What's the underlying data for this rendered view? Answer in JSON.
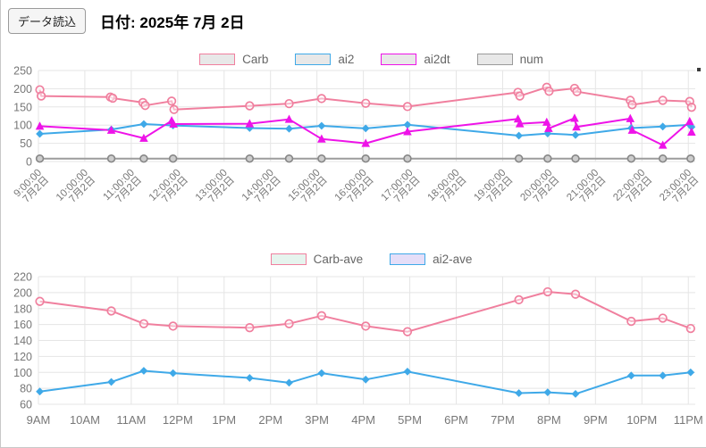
{
  "header": {
    "load_button_label": "データ読込",
    "date_title": "日付: 2025年 7月 2日"
  },
  "chart_data": [
    {
      "id": "detail",
      "type": "line",
      "title": "",
      "legend_position": "top",
      "grid": true,
      "y_axis": {
        "min": 0,
        "max": 250,
        "ticks": [
          0,
          50,
          100,
          150,
          200,
          250
        ]
      },
      "x_axis": {
        "kind": "time-of-day",
        "rotated": true,
        "tick_hours": [
          9,
          10,
          11,
          12,
          13,
          14,
          15,
          16,
          17,
          18,
          19,
          20,
          21,
          22,
          23
        ],
        "tick_labels": [
          {
            "time": "9:00:00",
            "date": "7月2日"
          },
          {
            "time": "10:00:00",
            "date": "7月2日"
          },
          {
            "time": "11:00:00",
            "date": "7月2日"
          },
          {
            "time": "12:00:00",
            "date": "7月2日"
          },
          {
            "time": "13:00:00",
            "date": "7月2日"
          },
          {
            "time": "14:00:00",
            "date": "7月2日"
          },
          {
            "time": "15:00:00",
            "date": "7月2日"
          },
          {
            "time": "16:00:00",
            "date": "7月2日"
          },
          {
            "time": "17:00:00",
            "date": "7月2日"
          },
          {
            "time": "18:00:00",
            "date": "7月2日"
          },
          {
            "time": "19:00:00",
            "date": "7月2日"
          },
          {
            "time": "20:00:00",
            "date": "7月2日"
          },
          {
            "time": "21:00:00",
            "date": "7月2日"
          },
          {
            "time": "22:00:00",
            "date": "7月2日"
          },
          {
            "time": "23:00:00",
            "date": "7月2日"
          }
        ]
      },
      "series": [
        {
          "name": "Carb",
          "line_color": "#f07f9e",
          "marker": "open-circle",
          "points": [
            [
              9.03,
              197
            ],
            [
              9.06,
              180
            ],
            [
              10.55,
              177
            ],
            [
              10.6,
              174
            ],
            [
              11.25,
              162
            ],
            [
              11.3,
              154
            ],
            [
              11.87,
              166
            ],
            [
              11.92,
              143
            ],
            [
              13.55,
              153
            ],
            [
              14.4,
              159
            ],
            [
              15.1,
              173
            ],
            [
              16.05,
              160
            ],
            [
              16.95,
              151
            ],
            [
              19.33,
              190
            ],
            [
              19.37,
              180
            ],
            [
              19.95,
              204
            ],
            [
              20.0,
              193
            ],
            [
              20.55,
              201
            ],
            [
              20.6,
              192
            ],
            [
              21.75,
              168
            ],
            [
              21.79,
              156
            ],
            [
              22.45,
              168
            ],
            [
              23.03,
              165
            ],
            [
              23.07,
              149
            ]
          ]
        },
        {
          "name": "ai2",
          "line_color": "#3fa9e8",
          "marker": "diamond",
          "points": [
            [
              9.03,
              76
            ],
            [
              10.57,
              88
            ],
            [
              11.27,
              103
            ],
            [
              11.9,
              99
            ],
            [
              13.55,
              92
            ],
            [
              14.4,
              90
            ],
            [
              15.1,
              98
            ],
            [
              16.05,
              91
            ],
            [
              16.95,
              101
            ],
            [
              19.35,
              71
            ],
            [
              19.97,
              77
            ],
            [
              20.57,
              73
            ],
            [
              21.77,
              92
            ],
            [
              22.45,
              96
            ],
            [
              23.03,
              101
            ],
            [
              23.07,
              95
            ]
          ]
        },
        {
          "name": "ai2dt",
          "line_color": "#ee13e8",
          "marker": "triangle",
          "points": [
            [
              9.03,
              97
            ],
            [
              10.57,
              86
            ],
            [
              11.27,
              64
            ],
            [
              11.87,
              112
            ],
            [
              11.91,
              103
            ],
            [
              13.55,
              104
            ],
            [
              14.4,
              116
            ],
            [
              15.1,
              62
            ],
            [
              16.05,
              50
            ],
            [
              16.95,
              82
            ],
            [
              19.33,
              117
            ],
            [
              19.37,
              104
            ],
            [
              19.95,
              108
            ],
            [
              19.99,
              91
            ],
            [
              20.55,
              119
            ],
            [
              20.59,
              95
            ],
            [
              21.75,
              118
            ],
            [
              21.79,
              86
            ],
            [
              22.45,
              45
            ],
            [
              23.03,
              110
            ],
            [
              23.07,
              81
            ]
          ]
        },
        {
          "name": "num",
          "line_color": "#9c9c9c",
          "marker": "ring-circle",
          "points": [
            [
              9.03,
              8
            ],
            [
              10.57,
              8
            ],
            [
              11.27,
              8
            ],
            [
              11.9,
              8
            ],
            [
              13.55,
              8
            ],
            [
              14.4,
              8
            ],
            [
              15.1,
              8
            ],
            [
              16.05,
              8
            ],
            [
              16.95,
              8
            ],
            [
              19.35,
              8
            ],
            [
              19.97,
              8
            ],
            [
              20.57,
              8
            ],
            [
              21.77,
              8
            ],
            [
              22.45,
              8
            ],
            [
              23.05,
              8
            ]
          ]
        }
      ],
      "legend": [
        {
          "label": "Carb",
          "box_border": "#f07f9e",
          "box_fill": "#e8e8e8"
        },
        {
          "label": "ai2",
          "box_border": "#3fa9e8",
          "box_fill": "#e8e8e8"
        },
        {
          "label": "ai2dt",
          "box_border": "#ee13e8",
          "box_fill": "#e8e8e8"
        },
        {
          "label": "num",
          "box_border": "#9a9a9a",
          "box_fill": "#e8e8e8"
        }
      ]
    },
    {
      "id": "hourly-average",
      "type": "line",
      "title": "",
      "legend_position": "top",
      "grid": true,
      "y_axis": {
        "min": 60,
        "max": 220,
        "ticks": [
          60,
          80,
          100,
          120,
          140,
          160,
          180,
          200,
          220
        ]
      },
      "x_axis": {
        "kind": "time-of-day",
        "rotated": false,
        "tick_hours": [
          9,
          10,
          11,
          12,
          13,
          14,
          15,
          16,
          17,
          18,
          19,
          20,
          21,
          22,
          23
        ],
        "tick_labels": [
          "9AM",
          "10AM",
          "11AM",
          "12PM",
          "1PM",
          "2PM",
          "3PM",
          "4PM",
          "5PM",
          "6PM",
          "7PM",
          "8PM",
          "9PM",
          "10PM",
          "11PM"
        ]
      },
      "series": [
        {
          "name": "Carb-ave",
          "line_color": "#f07f9e",
          "marker": "open-circle",
          "points": [
            [
              9.03,
              189
            ],
            [
              10.57,
              177
            ],
            [
              11.27,
              161
            ],
            [
              11.9,
              158
            ],
            [
              13.55,
              156
            ],
            [
              14.4,
              161
            ],
            [
              15.1,
              171
            ],
            [
              16.05,
              158
            ],
            [
              16.95,
              151
            ],
            [
              19.35,
              191
            ],
            [
              19.97,
              201
            ],
            [
              20.57,
              198
            ],
            [
              21.77,
              164
            ],
            [
              22.45,
              168
            ],
            [
              23.05,
              155
            ]
          ]
        },
        {
          "name": "ai2-ave",
          "line_color": "#3fa9e8",
          "marker": "diamond",
          "points": [
            [
              9.03,
              76
            ],
            [
              10.57,
              88
            ],
            [
              11.27,
              102
            ],
            [
              11.9,
              99
            ],
            [
              13.55,
              93
            ],
            [
              14.4,
              87
            ],
            [
              15.1,
              99
            ],
            [
              16.05,
              91
            ],
            [
              16.95,
              101
            ],
            [
              19.35,
              74
            ],
            [
              19.97,
              75
            ],
            [
              20.57,
              73
            ],
            [
              21.77,
              96
            ],
            [
              22.45,
              96
            ],
            [
              23.05,
              100
            ]
          ]
        }
      ],
      "legend": [
        {
          "label": "Carb-ave",
          "box_border": "#f07f9e",
          "box_fill": "#e6f4ee"
        },
        {
          "label": "ai2-ave",
          "box_border": "#3fa9e8",
          "box_fill": "#e5def8"
        }
      ]
    }
  ]
}
